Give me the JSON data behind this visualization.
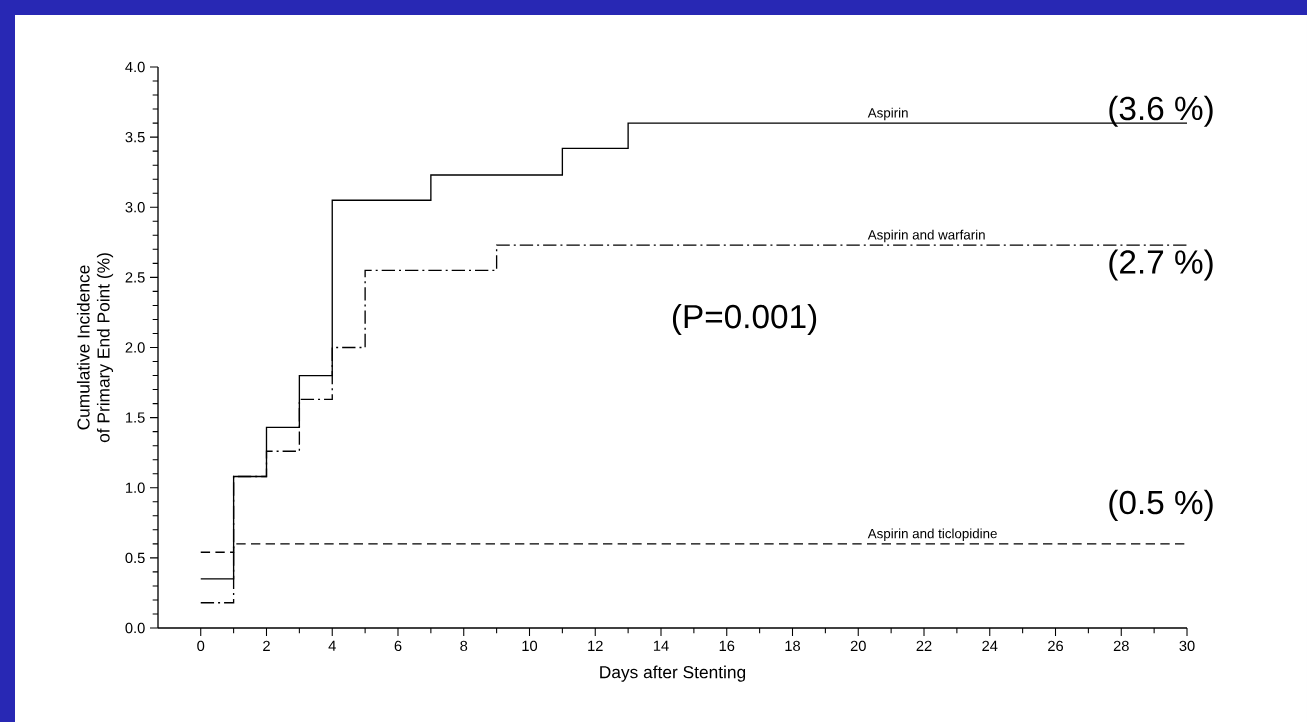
{
  "chart_data": {
    "type": "step",
    "xlabel": "Days after Stenting",
    "ylabel": "Cumulative Incidence\nof Primary End Point (%)",
    "xlim": [
      -1.3,
      30
    ],
    "ylim": [
      0,
      4
    ],
    "xticks": [
      0,
      2,
      4,
      6,
      8,
      10,
      12,
      14,
      16,
      18,
      20,
      22,
      24,
      26,
      28,
      30
    ],
    "yticks": [
      {
        "value": 0,
        "label": "0.0"
      },
      0.5,
      {
        "value": 1,
        "label": "1.0"
      },
      1.5,
      {
        "value": 2,
        "label": "2.0"
      },
      2.5,
      {
        "value": 3,
        "label": "3.0"
      },
      3.5,
      {
        "value": 4,
        "label": "4.0"
      }
    ],
    "grid": false,
    "marker": "none",
    "series": [
      {
        "name": "Aspirin",
        "color": "#000000",
        "line_style": "solid",
        "x": [
          0,
          1,
          2,
          3,
          4,
          7,
          11,
          13,
          30
        ],
        "values": [
          0.35,
          1.08,
          1.43,
          1.8,
          3.05,
          3.23,
          3.42,
          3.6,
          3.6
        ]
      },
      {
        "name": "Aspirin and warfarin",
        "color": "#000000",
        "line_style": "dashdot",
        "x": [
          0,
          1,
          2,
          3,
          4,
          5,
          9,
          30
        ],
        "values": [
          0.18,
          1.08,
          1.26,
          1.63,
          2.0,
          2.55,
          2.73,
          2.73
        ]
      },
      {
        "name": "Aspirin and ticlopidine",
        "color": "#000000",
        "line_style": "dashed",
        "x": [
          0,
          1,
          30
        ],
        "values": [
          0.54,
          0.6,
          0.6
        ]
      }
    ],
    "annotations": [
      {
        "text": "(3.6 %)",
        "y": 3.6
      },
      {
        "text": "(2.7 %)",
        "y": 2.73
      },
      {
        "text": "(0.5 %)",
        "y": 0.6
      },
      "(P=0.001)"
    ]
  }
}
